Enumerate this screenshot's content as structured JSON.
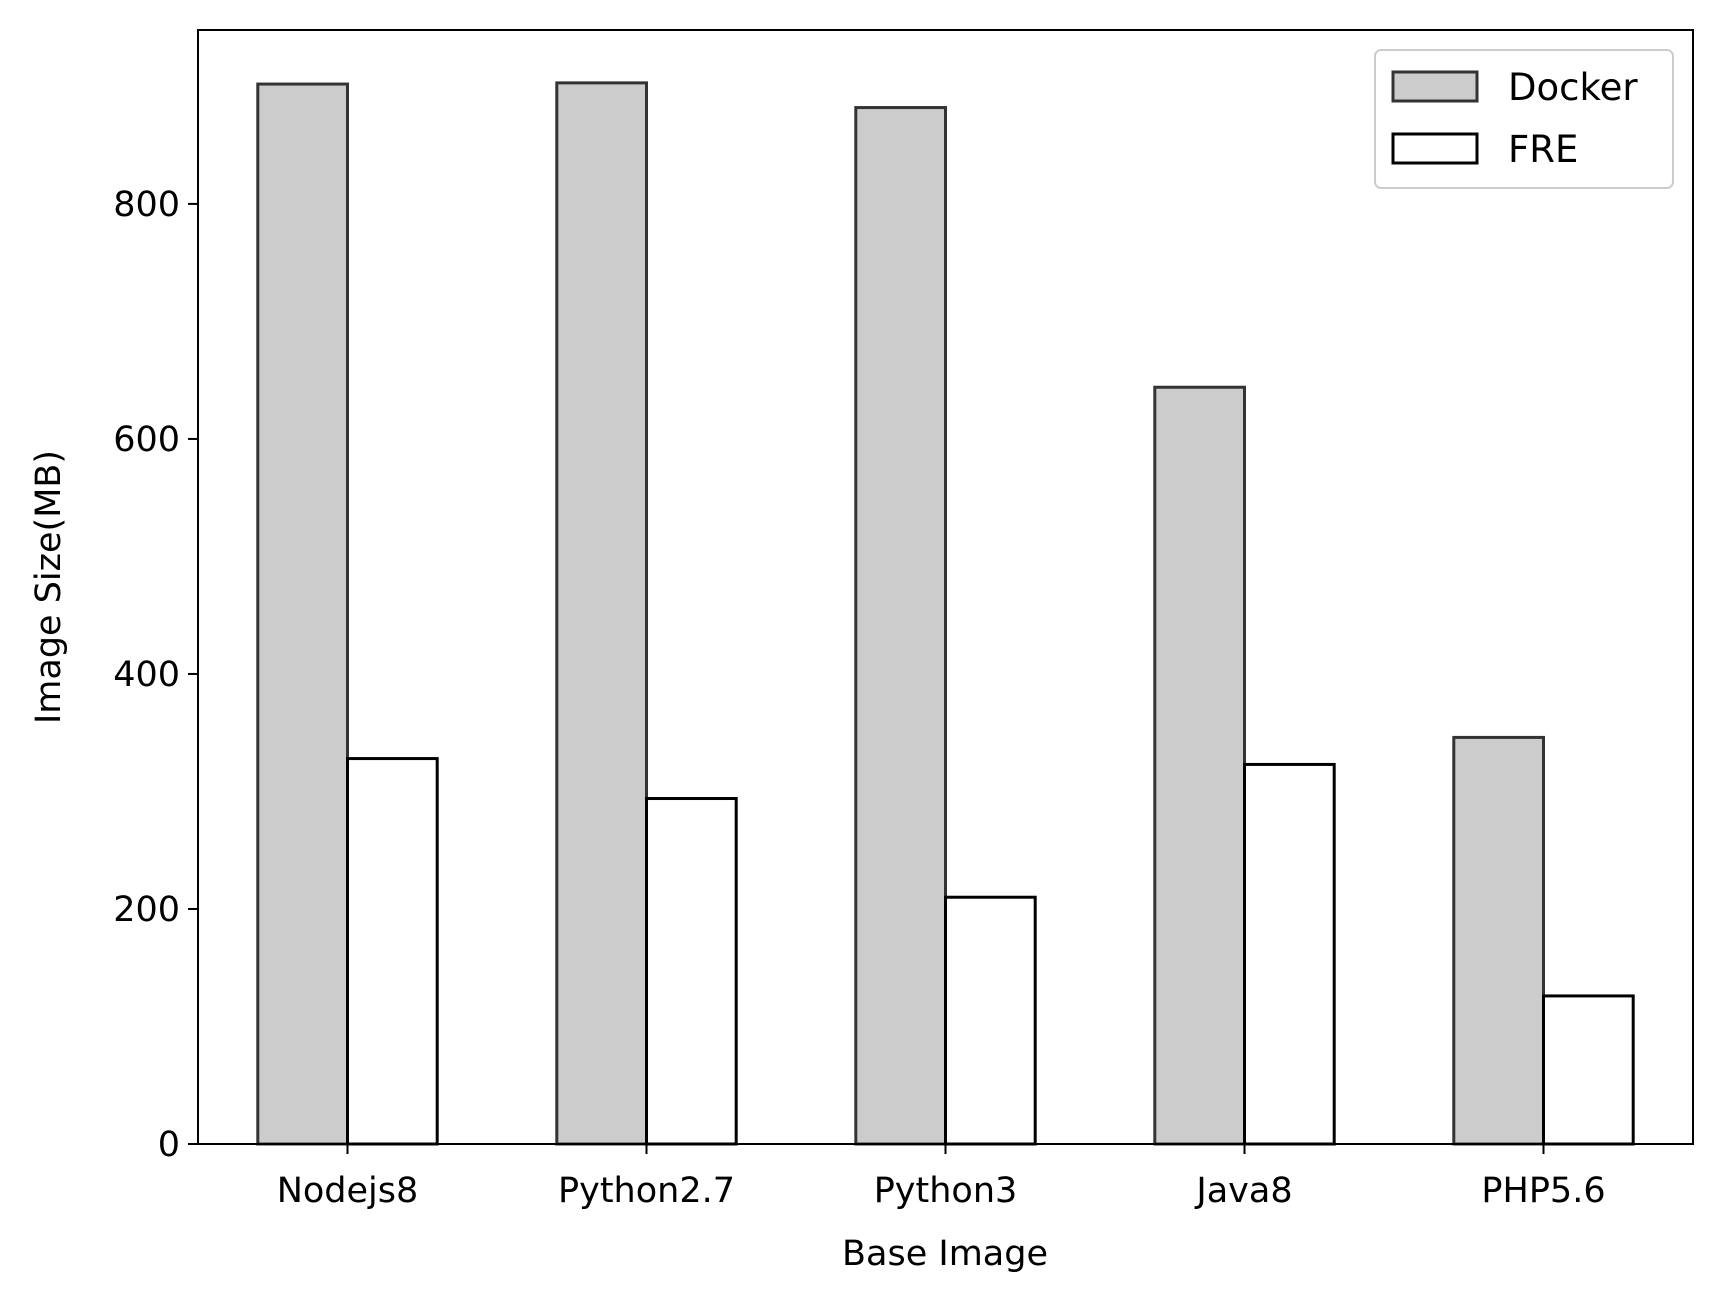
{
  "chart_data": {
    "type": "bar",
    "title": "",
    "xlabel": "Base Image",
    "ylabel": "Image Size(MB)",
    "categories": [
      "Nodejs8",
      "Python2.7",
      "Python3",
      "Java8",
      "PHP5.6"
    ],
    "series": [
      {
        "name": "Docker",
        "values": [
          902,
          903,
          882,
          644,
          346
        ],
        "fill": "#cccccc",
        "stroke": "#333333"
      },
      {
        "name": "FRE",
        "values": [
          328,
          294,
          210,
          323,
          126
        ],
        "fill": "#ffffff",
        "stroke": "#000000"
      }
    ],
    "ylim": [
      0,
      948
    ],
    "yticks": [
      0,
      200,
      400,
      600,
      800
    ],
    "grid": false,
    "legend_position": "top-right"
  }
}
